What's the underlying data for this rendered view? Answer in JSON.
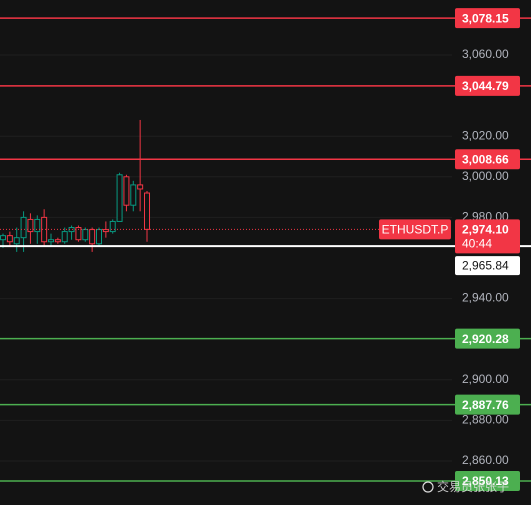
{
  "chart_data": {
    "type": "candlestick",
    "categories": [
      null,
      null,
      null,
      null,
      null,
      null,
      null,
      null,
      null,
      null,
      null,
      null,
      null,
      null,
      null,
      null,
      null,
      null,
      null,
      null,
      null,
      null
    ],
    "open": [
      2969,
      2971,
      2967,
      2970,
      2979,
      2973,
      2980,
      2968,
      2969,
      2968,
      2973,
      2975,
      2969,
      2974,
      2967,
      2974,
      2973,
      2978,
      3000,
      2986,
      2996,
      2992
    ],
    "high": [
      2972,
      2973,
      2975,
      2983,
      2982,
      2981,
      2984,
      2972,
      2970,
      2975,
      2976,
      2976,
      2975,
      2975,
      2975,
      2978,
      2979,
      3002,
      3001,
      2998,
      3028,
      2993
    ],
    "low": [
      2965,
      2966,
      2963,
      2963,
      2967,
      2967,
      2966,
      2966,
      2967,
      2967,
      2969,
      2968,
      2968,
      2963,
      2966,
      2970,
      2972,
      2978,
      2983,
      2983,
      2983,
      2968
    ],
    "close": [
      2971,
      2968,
      2970,
      2980,
      2973,
      2979,
      2968,
      2969,
      2968,
      2973,
      2975,
      2969,
      2974,
      2967,
      2974,
      2973,
      2978,
      3001,
      2986,
      2996,
      2994,
      2974.1
    ],
    "up_color": "#089981",
    "down_color": "#f23645",
    "ylim": [
      2838.3,
      3087.1
    ],
    "yticks": [
      {
        "value": 3060,
        "label": "3,060.00"
      },
      {
        "value": 3020,
        "label": "3,020.00"
      },
      {
        "value": 3000,
        "label": "3,000.00"
      },
      {
        "value": 2980,
        "label": "2,980.00"
      },
      {
        "value": 2940,
        "label": "2,940.00"
      },
      {
        "value": 2900,
        "label": "2,900.00"
      },
      {
        "value": 2880,
        "label": "2,880.00"
      },
      {
        "value": 2860,
        "label": "2,860.00"
      }
    ],
    "grid": true,
    "levels": [
      {
        "value": 3078.15,
        "label": "3,078.15",
        "color": "#f23645"
      },
      {
        "value": 3044.79,
        "label": "3,044.79",
        "color": "#f23645"
      },
      {
        "value": 3008.66,
        "label": "3,008.66",
        "color": "#f23645"
      },
      {
        "value": 2920.28,
        "label": "2,920.28",
        "color": "#4caf50"
      },
      {
        "value": 2887.76,
        "label": "2,887.76",
        "color": "#4caf50"
      },
      {
        "value": 2850.13,
        "label": "2,850.13",
        "color": "#4caf50"
      }
    ],
    "last_price": {
      "value": 2974.1,
      "label": "2,974.10",
      "symbol": "ETHUSDT.P",
      "countdown": "40:44",
      "color": "#f23645"
    },
    "mark_price": {
      "value": 2965.84,
      "label": "2,965.84",
      "color": "#ffffff"
    },
    "watermark": "交易员张张子"
  }
}
